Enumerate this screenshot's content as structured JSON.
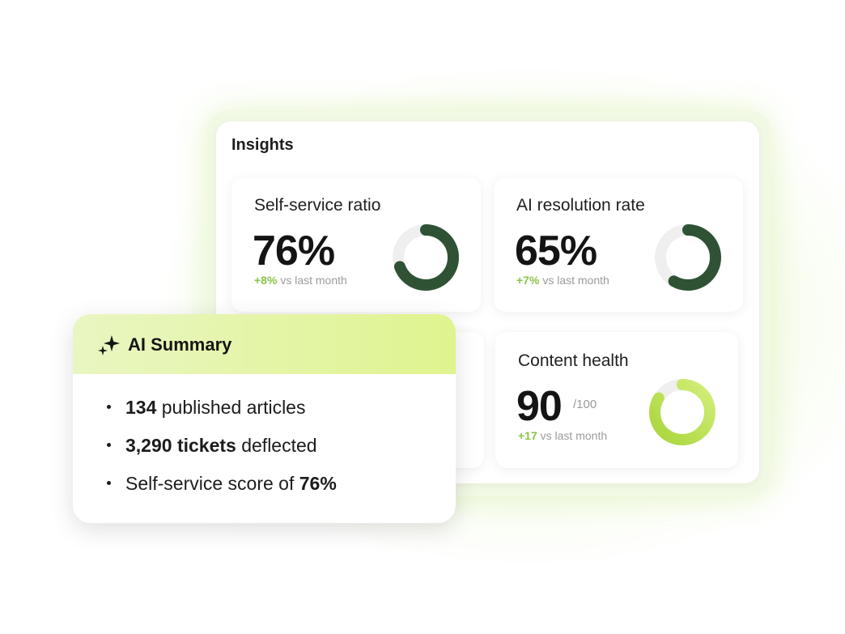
{
  "insights": {
    "title": "Insights",
    "cards": [
      {
        "label": "Self-service ratio",
        "value": "76%",
        "delta": "+8%",
        "delta_text": "vs last month",
        "ring_percent": 76,
        "ring_color": "#2f5234"
      },
      {
        "label": "AI resolution rate",
        "value": "65%",
        "delta": "+7%",
        "delta_text": "vs last month",
        "ring_percent": 65,
        "ring_color": "#2f5234"
      },
      {
        "label": "Content health",
        "value": "90",
        "suffix": "/100",
        "delta": "+17",
        "delta_text": "vs last month",
        "ring_percent": 90,
        "ring_color": "#b5dd4e"
      }
    ]
  },
  "summary": {
    "title": "AI Summary",
    "icon": "sparkle-icon",
    "items": [
      {
        "bold": "134",
        "text": " published articles"
      },
      {
        "bold": "3,290 tickets",
        "text": " deflected"
      },
      {
        "text": "Self-service score of ",
        "bold": "76%"
      }
    ]
  },
  "colors": {
    "accent_green": "#8bc34a",
    "dark_green": "#2f5234",
    "lime": "#b5dd4e",
    "summary_header": "#dff48f"
  }
}
